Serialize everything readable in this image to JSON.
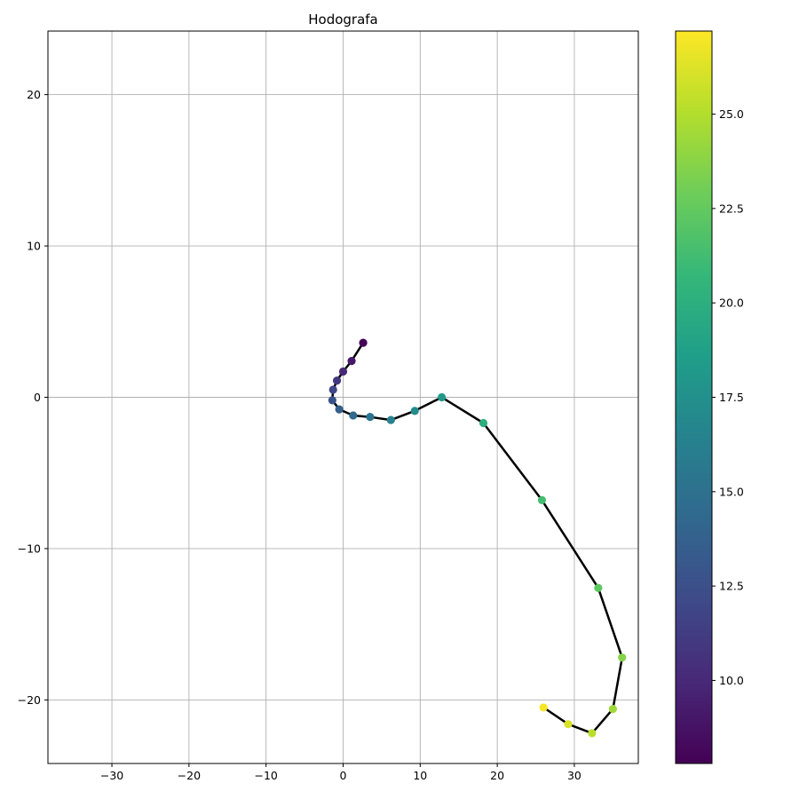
{
  "chart_data": {
    "type": "line",
    "title": "Hodografa",
    "xlabel": "",
    "ylabel": "",
    "xlim": [
      -38.3,
      38.3
    ],
    "ylim": [
      -24.2,
      24.2
    ],
    "x_ticks": [
      -30,
      -20,
      -10,
      0,
      10,
      20,
      30
    ],
    "y_ticks": [
      -20,
      -10,
      0,
      10,
      20
    ],
    "grid": true,
    "line_color": "#000000",
    "colormap": "viridis",
    "colorbar": {
      "vmin": 7.8,
      "vmax": 27.2,
      "ticks": [
        10.0,
        12.5,
        15.0,
        17.5,
        20.0,
        22.5,
        25.0
      ]
    },
    "points": [
      {
        "x": 2.6,
        "y": 3.6,
        "c": 8.0
      },
      {
        "x": 1.1,
        "y": 2.4,
        "c": 9.1
      },
      {
        "x": 0.0,
        "y": 1.7,
        "c": 10.0
      },
      {
        "x": -0.8,
        "y": 1.1,
        "c": 10.9
      },
      {
        "x": -1.3,
        "y": 0.5,
        "c": 11.8
      },
      {
        "x": -1.4,
        "y": -0.2,
        "c": 12.7
      },
      {
        "x": -0.5,
        "y": -0.8,
        "c": 13.6
      },
      {
        "x": 1.3,
        "y": -1.2,
        "c": 14.5
      },
      {
        "x": 3.5,
        "y": -1.3,
        "c": 15.4
      },
      {
        "x": 6.2,
        "y": -1.5,
        "c": 16.3
      },
      {
        "x": 9.3,
        "y": -0.9,
        "c": 17.2
      },
      {
        "x": 12.8,
        "y": 0.0,
        "c": 18.1
      },
      {
        "x": 18.2,
        "y": -1.7,
        "c": 20.0
      },
      {
        "x": 25.8,
        "y": -6.8,
        "c": 21.3
      },
      {
        "x": 33.1,
        "y": -12.6,
        "c": 22.3
      },
      {
        "x": 36.2,
        "y": -17.2,
        "c": 23.6
      },
      {
        "x": 35.0,
        "y": -20.6,
        "c": 24.4
      },
      {
        "x": 32.3,
        "y": -22.2,
        "c": 25.2
      },
      {
        "x": 29.2,
        "y": -21.6,
        "c": 26.1
      },
      {
        "x": 26.0,
        "y": -20.5,
        "c": 27.0
      }
    ]
  }
}
